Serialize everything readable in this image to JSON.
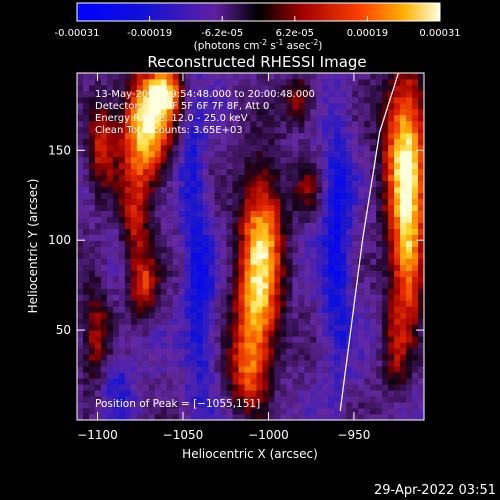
{
  "colorbar": {
    "min": -0.00031,
    "max": 0.00031,
    "tick_labels": [
      "-0.00031",
      "-0.00019",
      "-6.2e-05",
      "6.2e-05",
      "0.00019",
      "0.00031"
    ],
    "unit_label_main": "(photons cm",
    "unit_sup1": "-2",
    "unit_mid": " s",
    "unit_sup2": "-1",
    "unit_mid2": " asec",
    "unit_sup3": "-2",
    "unit_end": ")"
  },
  "chart_data": {
    "type": "heatmap",
    "title": "Reconstructed RHESSI Image",
    "xlabel": "Heliocentric X (arcsec)",
    "ylabel": "Heliocentric Y (arcsec)",
    "xlim": [
      -1112,
      -909
    ],
    "ylim": [
      0,
      193
    ],
    "xticks": [
      -1100,
      -1050,
      -1000,
      -950
    ],
    "yticks": [
      50,
      100,
      150
    ],
    "xtick_labels": [
      "−1100",
      "−1050",
      "−1000",
      "−950"
    ],
    "ytick_labels": [
      "50",
      "100",
      "150"
    ],
    "annotations": [
      "13-May-2002 19:54:48.000 to 20:00:48.000",
      "Detectors: 3F 4F 5F 6F 7F 8F, Att 0",
      "Energy Range: 12.0 - 25.0 keV",
      "Clean    Total counts: 3.65E+03"
    ],
    "peak_label": "Position of Peak = [−1055,151]",
    "peak": [
      -1055,
      151
    ],
    "limb_line": [
      [
        -958,
        5
      ],
      [
        -945,
        100
      ],
      [
        -935,
        160
      ],
      [
        -924,
        193
      ]
    ],
    "blobs": [
      {
        "x": -1072,
        "y": 163,
        "sx": 10,
        "sy": 22,
        "amp": 1.0
      },
      {
        "x": -1060,
        "y": 182,
        "sx": 7,
        "sy": 10,
        "amp": 0.7
      },
      {
        "x": -1078,
        "y": 110,
        "sx": 6,
        "sy": 18,
        "amp": 0.45
      },
      {
        "x": -1073,
        "y": 75,
        "sx": 6,
        "sy": 12,
        "amp": 0.55
      },
      {
        "x": -1098,
        "y": 155,
        "sx": 6,
        "sy": 18,
        "amp": 0.5
      },
      {
        "x": -1101,
        "y": 45,
        "sx": 6,
        "sy": 25,
        "amp": 0.4
      },
      {
        "x": -1004,
        "y": 100,
        "sx": 9,
        "sy": 30,
        "amp": 0.85
      },
      {
        "x": -1008,
        "y": 55,
        "sx": 9,
        "sy": 20,
        "amp": 0.6
      },
      {
        "x": -1012,
        "y": 25,
        "sx": 8,
        "sy": 15,
        "amp": 0.5
      },
      {
        "x": -982,
        "y": 178,
        "sx": 6,
        "sy": 10,
        "amp": 0.45
      },
      {
        "x": -978,
        "y": 128,
        "sx": 5,
        "sy": 10,
        "amp": 0.3
      },
      {
        "x": -920,
        "y": 150,
        "sx": 9,
        "sy": 35,
        "amp": 0.95
      },
      {
        "x": -918,
        "y": 90,
        "sx": 7,
        "sy": 25,
        "amp": 0.7
      },
      {
        "x": -925,
        "y": 40,
        "sx": 6,
        "sy": 20,
        "amp": 0.35
      },
      {
        "x": -1045,
        "y": 140,
        "sx": 5,
        "sy": 30,
        "amp": -0.3
      },
      {
        "x": -1040,
        "y": 60,
        "sx": 6,
        "sy": 40,
        "amp": -0.35
      },
      {
        "x": -960,
        "y": 100,
        "sx": 6,
        "sy": 50,
        "amp": -0.4
      },
      {
        "x": -1090,
        "y": 20,
        "sx": 8,
        "sy": 15,
        "amp": -0.25
      }
    ]
  },
  "timestamp": "29-Apr-2022 03:51"
}
